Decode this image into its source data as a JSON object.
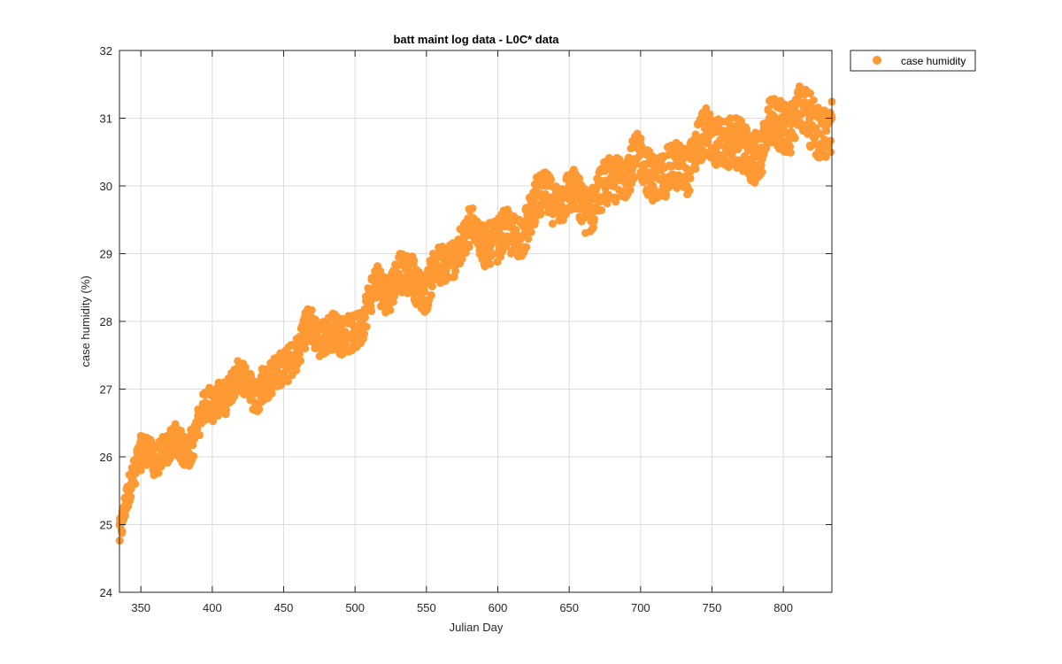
{
  "chart_data": {
    "type": "scatter",
    "title": "batt maint log data - L0C* data",
    "xlabel": "Julian Day",
    "ylabel": "case humidity (%)",
    "xlim": [
      335,
      834
    ],
    "ylim": [
      24,
      32
    ],
    "xticks": [
      350,
      400,
      450,
      500,
      550,
      600,
      650,
      700,
      750,
      800
    ],
    "yticks": [
      24,
      25,
      26,
      27,
      28,
      29,
      30,
      31,
      32
    ],
    "grid": true,
    "legend_position": "outside-top-right",
    "series": [
      {
        "name": "case humidity",
        "color": "#ff9933",
        "x": [
          335,
          337,
          339,
          341,
          343,
          346,
          350,
          355,
          360,
          365,
          370,
          375,
          380,
          385,
          390,
          395,
          400,
          405,
          410,
          415,
          420,
          425,
          430,
          435,
          440,
          445,
          450,
          455,
          460,
          465,
          470,
          475,
          480,
          485,
          490,
          495,
          500,
          505,
          510,
          515,
          520,
          525,
          530,
          535,
          540,
          545,
          550,
          555,
          560,
          565,
          570,
          575,
          580,
          585,
          590,
          595,
          600,
          605,
          610,
          615,
          620,
          625,
          630,
          635,
          640,
          645,
          650,
          655,
          660,
          665,
          670,
          675,
          680,
          685,
          690,
          695,
          700,
          705,
          710,
          715,
          720,
          725,
          730,
          735,
          740,
          745,
          750,
          755,
          760,
          765,
          770,
          775,
          780,
          785,
          790,
          795,
          800,
          805,
          810,
          815,
          820,
          825,
          830,
          834
        ],
        "y": [
          25.0,
          25.2,
          25.4,
          25.5,
          25.6,
          25.6,
          25.8,
          25.9,
          25.9,
          26.1,
          26.1,
          26.3,
          26.3,
          26.4,
          26.6,
          26.7,
          26.6,
          26.8,
          26.8,
          26.9,
          27.0,
          27.1,
          27.1,
          27.3,
          27.2,
          27.3,
          27.4,
          27.5,
          27.4,
          27.6,
          27.7,
          27.7,
          27.9,
          27.9,
          27.8,
          28.0,
          28.1,
          28.1,
          28.2,
          28.4,
          28.3,
          28.4,
          28.6,
          28.5,
          28.7,
          28.7,
          28.7,
          28.9,
          28.8,
          28.9,
          29.0,
          29.0,
          29.1,
          29.2,
          29.1,
          29.3,
          29.3,
          29.4,
          29.4,
          29.5,
          29.5,
          29.6,
          29.6,
          29.7,
          29.7,
          29.7,
          29.8,
          29.9,
          29.9,
          29.9,
          30.0,
          30.0,
          30.0,
          30.1,
          30.1,
          30.1,
          30.2,
          30.2,
          30.3,
          30.3,
          30.3,
          30.4,
          30.4,
          30.4,
          30.5,
          30.5,
          30.5,
          30.6,
          30.6,
          30.6,
          30.6,
          30.7,
          30.7,
          30.7,
          30.8,
          30.8,
          30.8,
          30.8,
          30.9,
          30.9,
          30.9,
          31.0,
          31.0,
          31.0
        ]
      }
    ]
  }
}
